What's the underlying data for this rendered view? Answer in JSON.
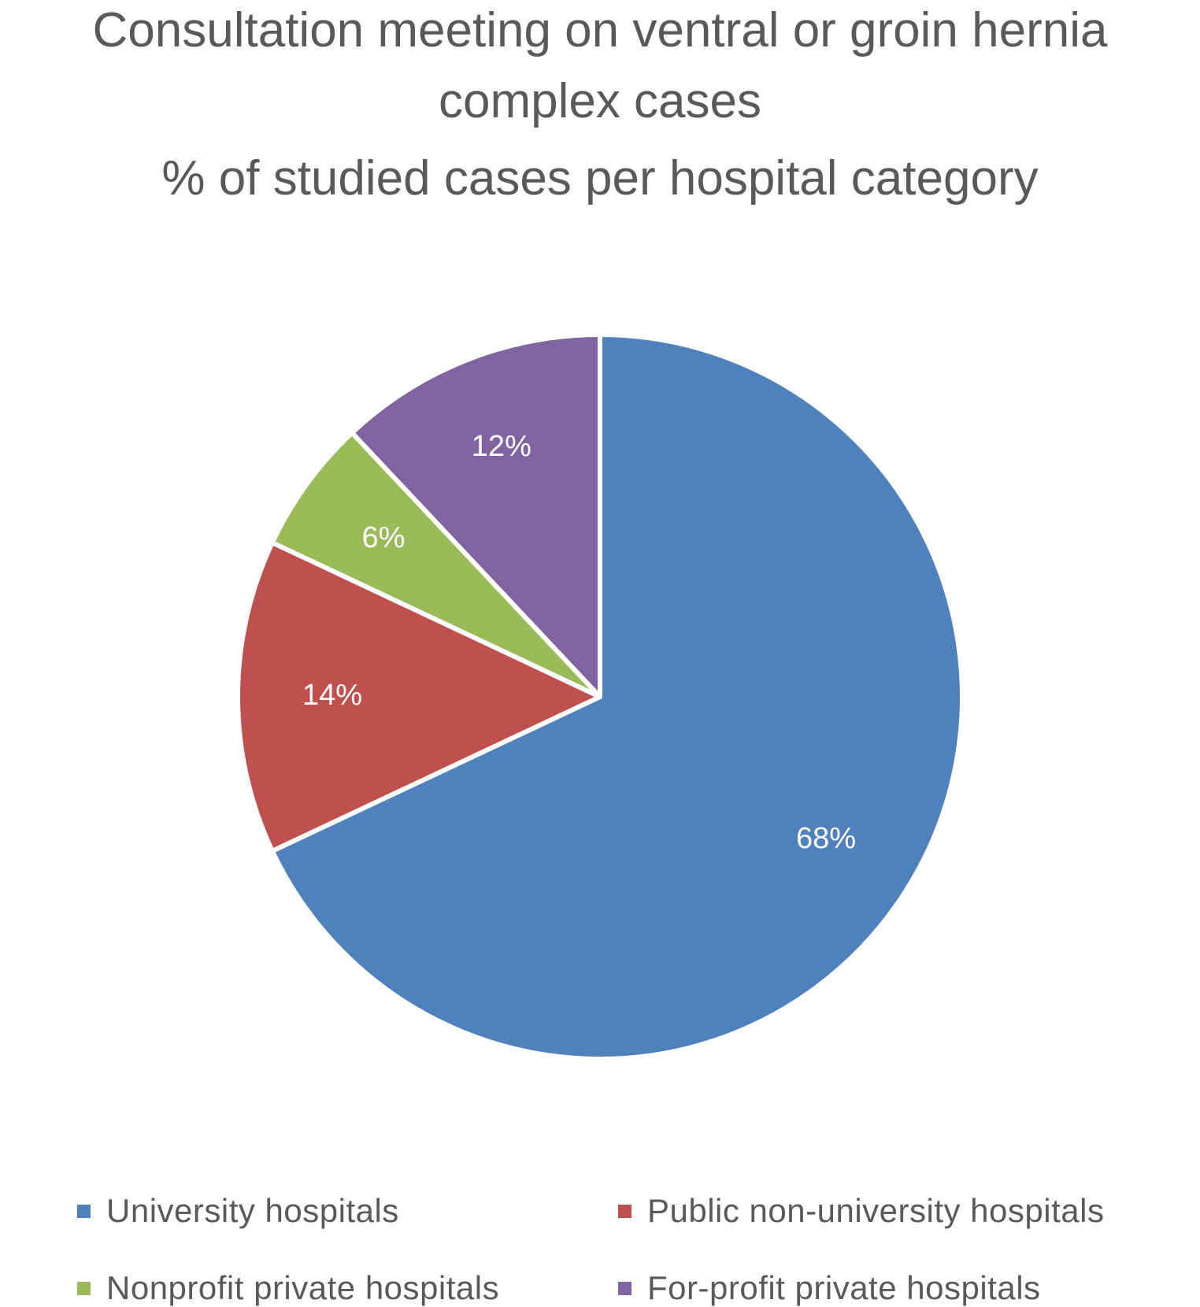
{
  "chart_data": {
    "type": "pie",
    "title": "Consultation meeting on ventral or groin hernia complex cases",
    "title_lines": [
      "Consultation meeting on ventral or groin hernia",
      "complex cases",
      "% of studied cases per hospital category"
    ],
    "categories": [
      "University hospitals",
      "Public non-university hospitals",
      "Nonprofit private hospitals",
      "For-profit private hospitals"
    ],
    "values": [
      68,
      14,
      6,
      12
    ],
    "value_labels": [
      "68%",
      "14%",
      "6%",
      "12%"
    ],
    "colors": [
      "#4F81BD",
      "#C0504D",
      "#9BBB59",
      "#8064A2"
    ],
    "start_angle_deg": 0,
    "direction": "clockwise",
    "legend_position": "bottom"
  }
}
